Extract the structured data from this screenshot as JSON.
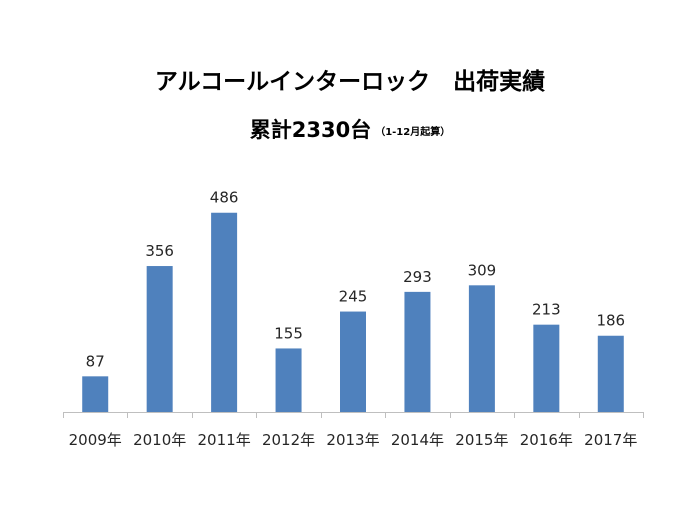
{
  "title": "アルコールインターロック　出荷実績",
  "subtitle": "累計2330台",
  "subtitle_note": "（1-12月起算）",
  "chart_data": {
    "type": "bar",
    "categories": [
      "2009年",
      "2010年",
      "2011年",
      "2012年",
      "2013年",
      "2014年",
      "2015年",
      "2016年",
      "2017年"
    ],
    "values": [
      87,
      356,
      486,
      155,
      245,
      293,
      309,
      213,
      186
    ],
    "ylim": [
      0,
      500
    ],
    "grid": false,
    "legend": "none",
    "bar_color": "#4f81bd",
    "data_labels": true
  }
}
